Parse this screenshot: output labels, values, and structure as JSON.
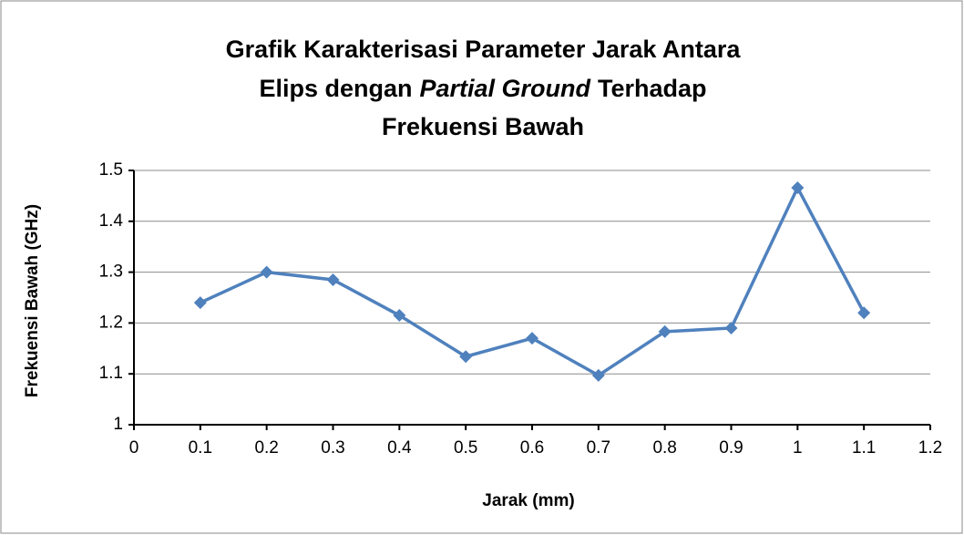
{
  "chart_data": {
    "type": "line",
    "title": [
      "Grafik Karakterisasi Parameter Jarak Antara",
      "Elips dengan",
      "Partial Ground",
      "Terhadap",
      "Frekuensi Bawah"
    ],
    "xlabel": "Jarak (mm)",
    "ylabel": "Frekuensi Bawah (GHz)",
    "x": [
      0.1,
      0.2,
      0.3,
      0.4,
      0.5,
      0.6,
      0.7,
      0.8,
      0.9,
      1,
      1.1
    ],
    "series": [
      {
        "color": "#4f81bd",
        "values": [
          1.24,
          1.3,
          1.285,
          1.215,
          1.134,
          1.17,
          1.097,
          1.183,
          1.19,
          1.466,
          1.22
        ]
      }
    ],
    "xlim": [
      0,
      1.2
    ],
    "xticks": [
      0,
      0.1,
      0.2,
      0.3,
      0.4,
      0.5,
      0.6,
      0.7,
      0.8,
      0.9,
      1,
      1.1,
      1.2
    ],
    "ylim": [
      1,
      1.5
    ],
    "yticks": [
      1,
      1.1,
      1.2,
      1.3,
      1.4,
      1.5
    ],
    "grid": true
  }
}
